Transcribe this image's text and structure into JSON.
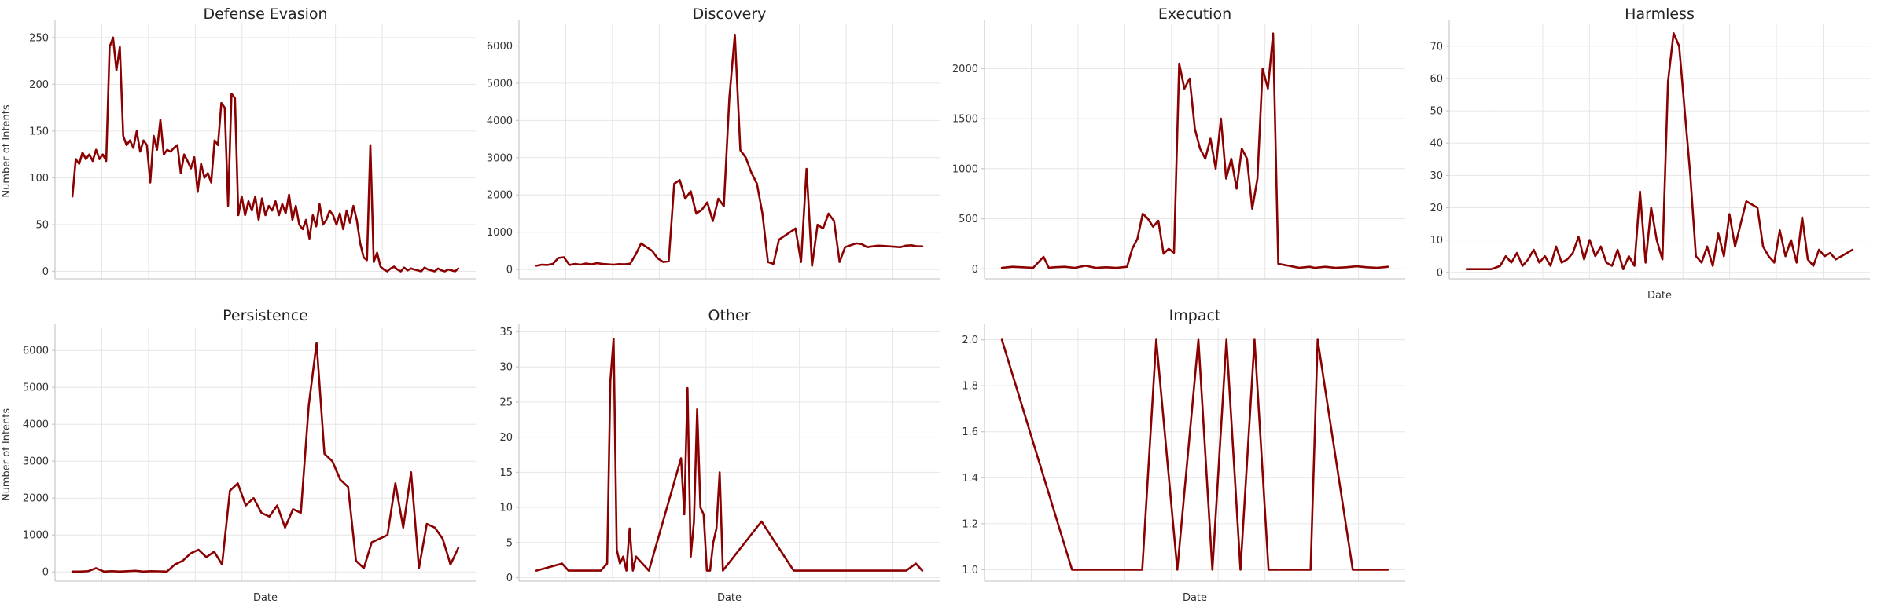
{
  "line_color": "#8b0000",
  "chart_data": [
    {
      "type": "line",
      "title": "Defense Evasion",
      "xlabel": "",
      "ylabel": "Number of Intents",
      "ylim": [
        -8,
        265
      ],
      "yticks": [
        0,
        50,
        100,
        150,
        200,
        250
      ],
      "grid": true,
      "x": [
        0,
        1,
        2,
        3,
        4,
        5,
        6,
        7,
        8,
        9,
        10,
        11,
        12,
        13,
        14,
        15,
        16,
        17,
        18,
        19,
        20,
        21,
        22,
        23,
        24,
        25,
        26,
        27,
        28,
        29,
        30,
        31,
        32,
        33,
        34,
        35,
        36,
        37,
        38,
        39,
        40,
        41,
        42,
        43,
        44,
        45,
        46,
        47,
        48,
        49,
        50,
        51,
        52,
        53,
        54,
        55,
        56,
        57,
        58,
        59,
        60,
        61,
        62,
        63,
        64,
        65,
        66,
        67,
        68,
        69,
        70,
        71,
        72,
        73,
        74,
        75,
        76,
        77,
        78,
        79,
        80,
        81,
        82,
        83,
        84,
        85,
        86,
        87,
        88,
        89,
        90,
        91,
        92,
        93,
        94,
        95,
        96,
        97,
        98,
        99,
        100
      ],
      "values": [
        80,
        120,
        115,
        127,
        120,
        125,
        118,
        130,
        120,
        125,
        118,
        240,
        250,
        215,
        240,
        145,
        135,
        140,
        132,
        150,
        128,
        140,
        135,
        95,
        145,
        130,
        162,
        125,
        130,
        128,
        132,
        135,
        105,
        125,
        118,
        110,
        122,
        85,
        115,
        100,
        105,
        95,
        140,
        135,
        180,
        175,
        70,
        190,
        185,
        60,
        80,
        60,
        75,
        65,
        80,
        55,
        78,
        60,
        70,
        65,
        75,
        60,
        72,
        62,
        82,
        55,
        70,
        50,
        45,
        55,
        35,
        60,
        48,
        72,
        50,
        55,
        65,
        60,
        50,
        62,
        45,
        65,
        52,
        70,
        55,
        30,
        15,
        12,
        135,
        10,
        20,
        5,
        2,
        0,
        3,
        5,
        2,
        0,
        4,
        1,
        3
      ],
      "x2": [
        100,
        101,
        102,
        103,
        104,
        105,
        106,
        107,
        108,
        109,
        110,
        111,
        112,
        113,
        114
      ],
      "values2": [
        3,
        2,
        1,
        0,
        4,
        2,
        1,
        0,
        3,
        1,
        0,
        2,
        1,
        0,
        3
      ]
    },
    {
      "type": "line",
      "title": "Discovery",
      "xlabel": "",
      "ylabel": "",
      "ylim": [
        -250,
        6600
      ],
      "yticks": [
        0,
        1000,
        2000,
        3000,
        4000,
        5000,
        6000
      ],
      "grid": true,
      "x": [
        0,
        2,
        4,
        6,
        8,
        10,
        12,
        14,
        16,
        18,
        20,
        22,
        24,
        26,
        28,
        30,
        32,
        34,
        36,
        38,
        40,
        42,
        44,
        46,
        48,
        50,
        52,
        54,
        56,
        58,
        60,
        62,
        64,
        66,
        68,
        70,
        72,
        74,
        76,
        78,
        80,
        82,
        84,
        86,
        88,
        90,
        92,
        94,
        96,
        98,
        100,
        102,
        104,
        106,
        108,
        110,
        112,
        114,
        116,
        118,
        120,
        122,
        124,
        126,
        128,
        130,
        132,
        134,
        136,
        138,
        140
      ],
      "values": [
        100,
        130,
        120,
        150,
        310,
        330,
        120,
        150,
        130,
        160,
        140,
        170,
        150,
        140,
        130,
        145,
        140,
        155,
        400,
        700,
        600,
        500,
        300,
        200,
        220,
        2300,
        2400,
        1900,
        2100,
        1500,
        1600,
        1800,
        1300,
        1900,
        1700,
        4600,
        6300,
        3200,
        3000,
        2600,
        2300,
        1500,
        200,
        150,
        800,
        900,
        1000,
        1100,
        200,
        2700,
        100,
        1200,
        1100,
        1500,
        1300,
        200,
        600,
        650,
        700,
        680,
        600,
        620,
        640,
        630,
        620,
        610,
        600,
        640,
        650,
        620,
        620
      ]
    },
    {
      "type": "line",
      "title": "Execution",
      "xlabel": "",
      "ylabel": "",
      "ylim": [
        -100,
        2450
      ],
      "yticks": [
        0,
        500,
        1000,
        1500,
        2000
      ],
      "grid": true,
      "x": [
        0,
        4,
        8,
        12,
        16,
        18,
        20,
        24,
        28,
        32,
        36,
        40,
        44,
        48,
        50,
        52,
        54,
        56,
        58,
        60,
        62,
        64,
        66,
        68,
        70,
        72,
        74,
        76,
        78,
        80,
        82,
        84,
        86,
        88,
        90,
        92,
        94,
        96,
        98,
        100,
        102,
        104,
        106,
        108,
        110,
        112,
        114,
        116,
        118,
        120,
        124,
        128,
        132,
        136,
        140,
        144,
        148
      ],
      "values": [
        10,
        20,
        15,
        10,
        120,
        10,
        15,
        20,
        10,
        30,
        10,
        15,
        10,
        20,
        200,
        300,
        550,
        500,
        420,
        480,
        150,
        200,
        160,
        2050,
        1800,
        1900,
        1400,
        1200,
        1100,
        1300,
        1000,
        1500,
        900,
        1100,
        800,
        1200,
        1100,
        600,
        900,
        2000,
        1800,
        2350,
        50,
        40,
        30,
        20,
        10,
        15,
        20,
        10,
        20,
        10,
        15,
        25,
        15,
        10,
        20
      ]
    },
    {
      "type": "line",
      "title": "Harmless",
      "xlabel": "Date",
      "ylabel": "",
      "ylim": [
        -2,
        77
      ],
      "yticks": [
        0,
        10,
        20,
        30,
        40,
        50,
        60,
        70
      ],
      "grid": true,
      "x": [
        0,
        3,
        6,
        9,
        12,
        14,
        16,
        18,
        20,
        22,
        24,
        26,
        28,
        30,
        32,
        34,
        36,
        38,
        40,
        42,
        44,
        46,
        48,
        50,
        52,
        54,
        56,
        58,
        60,
        62,
        64,
        66,
        68,
        70,
        72,
        74,
        76,
        78,
        80,
        82,
        84,
        86,
        88,
        90,
        92,
        94,
        96,
        98,
        100,
        102,
        104,
        106,
        108,
        110,
        112,
        114,
        116,
        118,
        120,
        122,
        124,
        126,
        128,
        130,
        132,
        134,
        136,
        138
      ],
      "values": [
        1,
        1,
        1,
        1,
        2,
        5,
        3,
        6,
        2,
        4,
        7,
        3,
        5,
        2,
        8,
        3,
        4,
        6,
        11,
        4,
        10,
        5,
        8,
        3,
        2,
        7,
        1,
        5,
        2,
        25,
        3,
        20,
        10,
        4,
        59,
        74,
        70,
        50,
        30,
        5,
        3,
        8,
        2,
        12,
        5,
        18,
        8,
        15,
        22,
        21,
        20,
        8,
        5,
        3,
        13,
        5,
        10,
        3,
        17,
        4,
        2,
        7,
        5,
        6,
        4,
        5,
        6,
        7
      ]
    },
    {
      "type": "line",
      "title": "Persistence",
      "xlabel": "Date",
      "ylabel": "Number of Intents",
      "ylim": [
        -250,
        6600
      ],
      "yticks": [
        0,
        1000,
        2000,
        3000,
        4000,
        5000,
        6000
      ],
      "grid": true,
      "x": [
        0,
        3,
        6,
        9,
        12,
        15,
        18,
        21,
        24,
        27,
        30,
        33,
        36,
        39,
        42,
        45,
        48,
        51,
        54,
        57,
        60,
        63,
        66,
        69,
        72,
        75,
        78,
        81,
        84,
        87,
        90,
        93,
        96,
        99,
        102,
        105,
        108,
        111,
        114,
        117,
        120,
        123,
        126,
        129,
        132,
        135,
        138,
        141,
        144,
        147
      ],
      "values": [
        10,
        10,
        20,
        100,
        10,
        20,
        10,
        20,
        30,
        10,
        20,
        15,
        10,
        200,
        300,
        500,
        600,
        400,
        550,
        200,
        2200,
        2400,
        1800,
        2000,
        1600,
        1500,
        1800,
        1200,
        1700,
        1600,
        4500,
        6200,
        3200,
        3000,
        2500,
        2300,
        300,
        100,
        800,
        900,
        1000,
        2400,
        1200,
        2700,
        100,
        1300,
        1200,
        900,
        200,
        650
      ]
    },
    {
      "type": "line",
      "title": "Other",
      "xlabel": "Date",
      "ylabel": "",
      "ylim": [
        -0.5,
        35.5
      ],
      "yticks": [
        0,
        5,
        10,
        15,
        20,
        25,
        30,
        35
      ],
      "grid": true,
      "x": [
        0,
        8,
        10,
        20,
        22,
        23,
        24,
        25,
        26,
        27,
        28,
        29,
        30,
        31,
        35,
        45,
        46,
        47,
        48,
        49,
        50,
        51,
        52,
        53,
        54,
        55,
        56,
        57,
        58,
        70,
        80,
        115,
        118,
        120
      ],
      "values": [
        1,
        2,
        1,
        1,
        2,
        28,
        34,
        4,
        2,
        3,
        1,
        7,
        1,
        3,
        1,
        17,
        9,
        27,
        3,
        8,
        24,
        10,
        9,
        1,
        1,
        5,
        7,
        15,
        1,
        8,
        1,
        1,
        2,
        1
      ]
    },
    {
      "type": "line",
      "title": "Impact",
      "xlabel": "Date",
      "ylabel": "",
      "ylim": [
        0.95,
        2.05
      ],
      "yticks": [
        1.0,
        1.2,
        1.4,
        1.6,
        1.8,
        2.0
      ],
      "grid": true,
      "x": [
        0,
        10,
        20,
        22,
        25,
        28,
        30,
        32,
        34,
        36,
        38,
        40,
        44,
        45,
        50,
        55
      ],
      "values": [
        2,
        1,
        1,
        2,
        1,
        2,
        1,
        2,
        1,
        2,
        1,
        1,
        1,
        2,
        1,
        1
      ]
    }
  ]
}
